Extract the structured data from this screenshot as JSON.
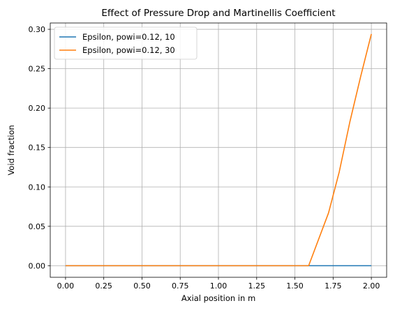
{
  "chart_data": {
    "type": "line",
    "title": "Effect of Pressure Drop and Martinellis Coefficient",
    "xlabel": "Axial position in m",
    "ylabel": "Void fraction",
    "xlim": [
      -0.1,
      2.1
    ],
    "ylim": [
      -0.0147,
      0.308
    ],
    "xticks": [
      0.0,
      0.25,
      0.5,
      0.75,
      1.0,
      1.25,
      1.5,
      1.75,
      2.0
    ],
    "xtick_labels": [
      "0.00",
      "0.25",
      "0.50",
      "0.75",
      "1.00",
      "1.25",
      "1.50",
      "1.75",
      "2.00"
    ],
    "yticks": [
      0.0,
      0.05,
      0.1,
      0.15,
      0.2,
      0.25,
      0.3
    ],
    "ytick_labels": [
      "0.00",
      "0.05",
      "0.10",
      "0.15",
      "0.20",
      "0.25",
      "0.30"
    ],
    "grid": true,
    "legend_position": "top-left",
    "series": [
      {
        "name": "Epsilon, powi=0.12, 10",
        "color": "#1f77b4",
        "x": [
          0.0,
          0.4,
          0.8,
          1.2,
          1.6,
          2.0
        ],
        "y": [
          0.0,
          0.0,
          0.0,
          0.0,
          0.0,
          0.0
        ]
      },
      {
        "name": "Epsilon, powi=0.12, 30",
        "color": "#ff7f0e",
        "x": [
          0.0,
          0.5,
          1.0,
          1.5,
          1.59,
          1.72,
          1.79,
          1.86,
          1.93,
          2.0
        ],
        "y": [
          0.0,
          0.0,
          0.0,
          0.0,
          0.0,
          0.067,
          0.119,
          0.183,
          0.24,
          0.294
        ]
      }
    ]
  }
}
